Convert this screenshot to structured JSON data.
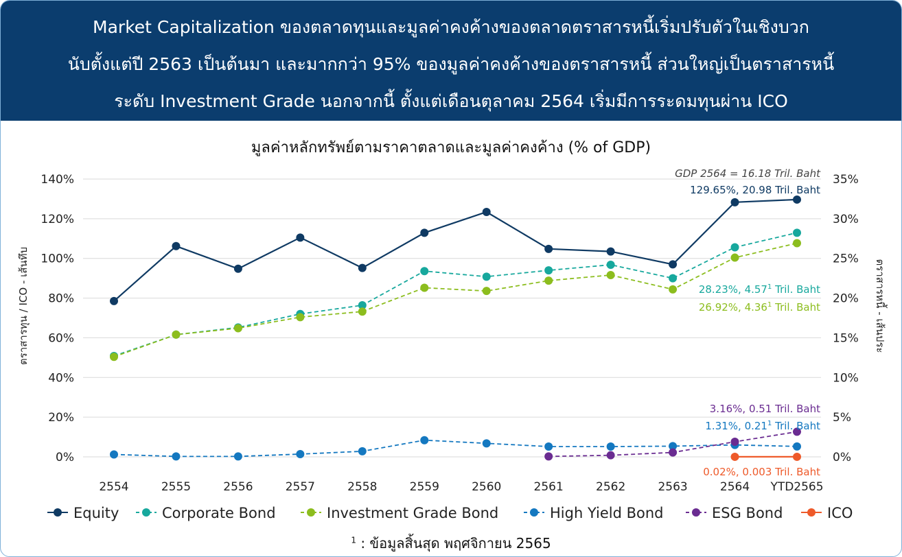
{
  "banner": {
    "line1": "Market Capitalization ของตลาดทุนและมูลค่าคงค้างของตลาดตราสารหนี้เริ่มปรับตัวในเชิงบวก",
    "line2": "นับตั้งแต่ปี 2563 เป็นต้นมา และมากกว่า 95% ของมูลค่าคงค้างของตราสารหนี้ ส่วนใหญ่เป็นตราสารหนี้",
    "line3": "ระดับ Investment Grade นอกจากนี้ ตั้งแต่เดือนตุลาคม 2564 เริ่มมีการระดมทุนผ่าน ICO"
  },
  "footnote": {
    "mark": "1",
    "text": " : ข้อมูลสิ้นสุด พฤศจิกายน 2565"
  },
  "chart_data": {
    "type": "line",
    "title": "มูลค่าหลักทรัพย์ตามราคาตลาดและมูลค่าคงค้าง (% of GDP)",
    "note": "GDP 2564 = 16.18 Tril. Baht",
    "ylabel_left": "ตราสารทุน / ICO - เส้นทึบ",
    "ylabel_right": "ตราสารหนี้ - เส้นประ",
    "categories": [
      "2554",
      "2555",
      "2556",
      "2557",
      "2558",
      "2559",
      "2560",
      "2561",
      "2562",
      "2563",
      "2564",
      "YTD2565"
    ],
    "y_left": {
      "min": 0,
      "max": 140,
      "ticks": [
        "0%",
        "20%",
        "40%",
        "60%",
        "80%",
        "100%",
        "120%",
        "140%"
      ]
    },
    "y_right": {
      "min": 0,
      "max": 35,
      "ticks": [
        "0%",
        "5%",
        "10%",
        "15%",
        "20%",
        "25%",
        "30%",
        "35%"
      ]
    },
    "grid": true,
    "legend_position": "bottom",
    "series": [
      {
        "name": "Equity",
        "axis": "left",
        "dashed": false,
        "color": "#0f3a63",
        "values": [
          78.5,
          106.2,
          94.8,
          110.5,
          95.2,
          112.9,
          123.4,
          104.8,
          103.5,
          97.0,
          128.3,
          129.65
        ]
      },
      {
        "name": "Corporate Bond",
        "axis": "right",
        "dashed": true,
        "color": "#17a89d",
        "values": [
          12.7,
          15.4,
          16.3,
          18.0,
          19.1,
          23.4,
          22.7,
          23.5,
          24.2,
          22.5,
          26.4,
          28.23
        ]
      },
      {
        "name": "Investment Grade Bond",
        "axis": "right",
        "dashed": true,
        "color": "#8cbd1e",
        "values": [
          12.6,
          15.4,
          16.2,
          17.6,
          18.3,
          21.3,
          20.9,
          22.2,
          22.9,
          21.1,
          25.1,
          26.92
        ]
      },
      {
        "name": "High Yield Bond",
        "axis": "right",
        "dashed": true,
        "color": "#1478c0",
        "values": [
          0.3,
          0.05,
          0.05,
          0.35,
          0.7,
          2.1,
          1.7,
          1.3,
          1.3,
          1.35,
          1.5,
          1.31
        ]
      },
      {
        "name": "ESG Bond",
        "axis": "right",
        "dashed": true,
        "color": "#6a2c91",
        "values": [
          null,
          null,
          null,
          null,
          null,
          null,
          null,
          0.05,
          0.2,
          0.55,
          1.9,
          3.16
        ]
      },
      {
        "name": "ICO",
        "axis": "left",
        "dashed": false,
        "color": "#ee5a2a",
        "values": [
          null,
          null,
          null,
          null,
          null,
          null,
          null,
          null,
          null,
          null,
          0.02,
          0.02
        ]
      }
    ],
    "annotations": [
      {
        "text": "129.65%, 20.98  Tril. Baht",
        "sup": "",
        "color": "#0f3a63"
      },
      {
        "text": "28.23%, 4.57",
        "sup": "1",
        "suffix": " Tril. Baht",
        "color": "#17a89d"
      },
      {
        "text": "26.92%, 4.36",
        "sup": "1",
        "suffix": " Tril. Baht",
        "color": "#8cbd1e"
      },
      {
        "text": "3.16%, 0.51  Tril. Baht",
        "sup": "",
        "color": "#6a2c91"
      },
      {
        "text": "1.31%, 0.21",
        "sup": "1",
        "suffix": " Tril. Baht",
        "color": "#1478c0"
      },
      {
        "text": "0.02%, 0.003 Tril. Baht",
        "sup": "",
        "color": "#ee5a2a"
      }
    ]
  }
}
